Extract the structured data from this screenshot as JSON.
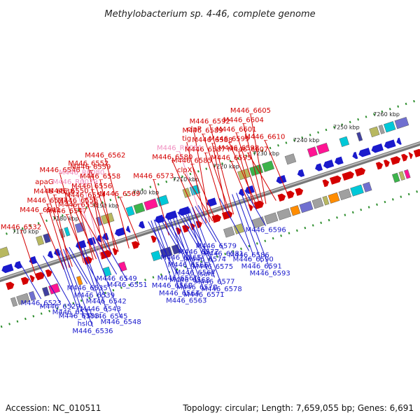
{
  "title": "Methylobacterium sp. 4-46, complete genome",
  "footer": {
    "accession": "Accession: NC_010511",
    "summary": "Topology: circular; Length: 7,659,055 bp; Genes: 6,691"
  },
  "colors": {
    "forward": "#d40000",
    "reverse": "#1a1acc",
    "rna": "#f08fc0",
    "backbone": "#888888",
    "dots": "#2f8f2f"
  },
  "ticks": [
    "7170 kbp",
    "7180 kbp",
    "7190 kbp",
    "7200 kbp",
    "7210 kbp",
    "7220 kbp",
    "7230 kbp",
    "7240 kbp",
    "7250 kbp",
    "7260 kbp"
  ],
  "top_labels": [
    {
      "text": "M446_6532",
      "kind": "forward",
      "pos": 0.08
    },
    {
      "text": "M446_6541",
      "kind": "forward",
      "pos": 0.145
    },
    {
      "text": "M446_6537",
      "kind": "forward",
      "pos": 0.152
    },
    {
      "text": "M446_6538",
      "kind": "forward",
      "pos": 0.158
    },
    {
      "text": "apaG",
      "kind": "forward",
      "pos": 0.165
    },
    {
      "text": "M446_6546",
      "kind": "forward",
      "pos": 0.192
    },
    {
      "text": "M446_6547",
      "kind": "forward",
      "pos": 0.198
    },
    {
      "text": "M446_6555",
      "kind": "forward",
      "pos": 0.215
    },
    {
      "text": "M446_6550",
      "kind": "forward",
      "pos": 0.222
    },
    {
      "text": "M446_R0079",
      "kind": "rna",
      "pos": 0.228
    },
    {
      "text": "M446_R0080",
      "kind": "rna",
      "pos": 0.234
    },
    {
      "text": "M446_6552",
      "kind": "forward",
      "pos": 0.24
    },
    {
      "text": "M446_6553",
      "kind": "forward",
      "pos": 0.246
    },
    {
      "text": "M446_6554",
      "kind": "forward",
      "pos": 0.252
    },
    {
      "text": "M446_6556",
      "kind": "forward",
      "pos": 0.258
    },
    {
      "text": "M446_6558",
      "kind": "forward",
      "pos": 0.268
    },
    {
      "text": "M446_6559",
      "kind": "forward",
      "pos": 0.275
    },
    {
      "text": "M446_6562",
      "kind": "forward",
      "pos": 0.3
    },
    {
      "text": "M446_6569",
      "kind": "forward",
      "pos": 0.325
    },
    {
      "text": "M446_6573",
      "kind": "forward",
      "pos": 0.395
    },
    {
      "text": "M446_6580",
      "kind": "forward",
      "pos": 0.47
    },
    {
      "text": "M446_R0081",
      "kind": "rna",
      "pos": 0.477
    },
    {
      "text": "tig",
      "kind": "forward",
      "pos": 0.484
    },
    {
      "text": "clpP",
      "kind": "forward",
      "pos": 0.492
    },
    {
      "text": "clpX",
      "kind": "forward",
      "pos": 0.499
    },
    {
      "text": "M446_6585",
      "kind": "forward",
      "pos": 0.506
    },
    {
      "text": "M446_6587",
      "kind": "forward",
      "pos": 0.528
    },
    {
      "text": "M446_6588",
      "kind": "forward",
      "pos": 0.535
    },
    {
      "text": "M446_6589",
      "kind": "forward",
      "pos": 0.542
    },
    {
      "text": "M446_6592",
      "kind": "forward",
      "pos": 0.549
    },
    {
      "text": "M446_6595",
      "kind": "forward",
      "pos": 0.59
    },
    {
      "text": "M446_6598",
      "kind": "forward",
      "pos": 0.598
    },
    {
      "text": "M446_6599",
      "kind": "forward",
      "pos": 0.605
    },
    {
      "text": "M446_6601",
      "kind": "forward",
      "pos": 0.612
    },
    {
      "text": "M446_6604",
      "kind": "forward",
      "pos": 0.619
    },
    {
      "text": "M446_6605",
      "kind": "forward",
      "pos": 0.626
    },
    {
      "text": "M446_6607",
      "kind": "forward",
      "pos": 0.65
    },
    {
      "text": "M446_6610",
      "kind": "forward",
      "pos": 0.68
    }
  ],
  "bottom_labels": [
    {
      "text": "M446_6523",
      "kind": "reverse",
      "pos": 0.055
    },
    {
      "text": "M446_6529",
      "kind": "reverse",
      "pos": 0.09
    },
    {
      "text": "M446_6531",
      "kind": "reverse",
      "pos": 0.11
    },
    {
      "text": "M446_6533",
      "kind": "reverse",
      "pos": 0.145
    },
    {
      "text": "hslO",
      "kind": "reverse",
      "pos": 0.15
    },
    {
      "text": "M446_6536",
      "kind": "reverse",
      "pos": 0.158
    },
    {
      "text": "M446_6535",
      "kind": "reverse",
      "pos": 0.165
    },
    {
      "text": "M446_6539",
      "kind": "reverse",
      "pos": 0.172
    },
    {
      "text": "M446_6542",
      "kind": "reverse",
      "pos": 0.19
    },
    {
      "text": "M446_6543",
      "kind": "reverse",
      "pos": 0.197
    },
    {
      "text": "M446_6545",
      "kind": "reverse",
      "pos": 0.203
    },
    {
      "text": "M446_6548",
      "kind": "reverse",
      "pos": 0.225
    },
    {
      "text": "M446_6549",
      "kind": "reverse",
      "pos": 0.235
    },
    {
      "text": "M446_6551",
      "kind": "reverse",
      "pos": 0.25
    },
    {
      "text": "M446_6561",
      "kind": "reverse",
      "pos": 0.36
    },
    {
      "text": "M446_6560",
      "kind": "reverse",
      "pos": 0.367
    },
    {
      "text": "M446_6564",
      "kind": "reverse",
      "pos": 0.374
    },
    {
      "text": "M446_6563",
      "kind": "reverse",
      "pos": 0.381
    },
    {
      "text": "M446_6565",
      "kind": "reverse",
      "pos": 0.388
    },
    {
      "text": "M446_6566",
      "kind": "reverse",
      "pos": 0.395
    },
    {
      "text": "M446_6567",
      "kind": "reverse",
      "pos": 0.402
    },
    {
      "text": "M446_6568",
      "kind": "reverse",
      "pos": 0.409
    },
    {
      "text": "M446_6570",
      "kind": "reverse",
      "pos": 0.416
    },
    {
      "text": "M446_6571",
      "kind": "reverse",
      "pos": 0.423
    },
    {
      "text": "M446_6572",
      "kind": "reverse",
      "pos": 0.43
    },
    {
      "text": "M446_6574",
      "kind": "reverse",
      "pos": 0.437
    },
    {
      "text": "M446_6575",
      "kind": "reverse",
      "pos": 0.444
    },
    {
      "text": "surE",
      "kind": "reverse",
      "pos": 0.451
    },
    {
      "text": "M446_6577",
      "kind": "reverse",
      "pos": 0.458
    },
    {
      "text": "M446_6578",
      "kind": "reverse",
      "pos": 0.465
    },
    {
      "text": "M446_6579",
      "kind": "reverse",
      "pos": 0.472
    },
    {
      "text": "M446_6581",
      "kind": "reverse",
      "pos": 0.479
    },
    {
      "text": "M446_6586",
      "kind": "reverse",
      "pos": 0.53
    },
    {
      "text": "M446_6590",
      "kind": "reverse",
      "pos": 0.56
    },
    {
      "text": "M446_6591",
      "kind": "reverse",
      "pos": 0.57
    },
    {
      "text": "M446_6593",
      "kind": "reverse",
      "pos": 0.58
    },
    {
      "text": "M446_6596",
      "kind": "reverse",
      "pos": 0.59
    }
  ]
}
